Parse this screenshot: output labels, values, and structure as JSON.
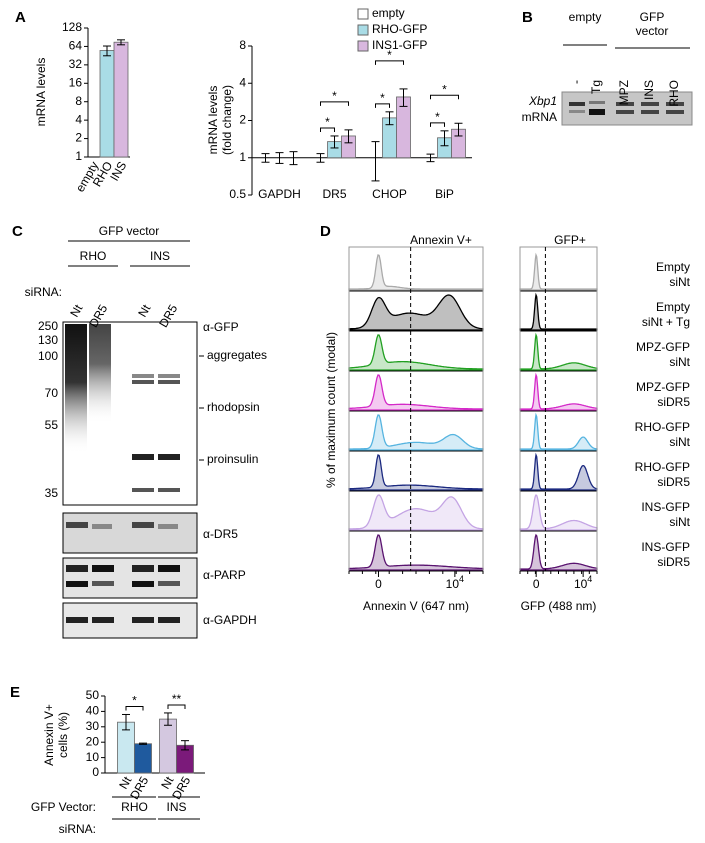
{
  "panel_labels": [
    "A",
    "B",
    "C",
    "D",
    "E"
  ],
  "chart_data": [
    {
      "type": "bar",
      "y_label": "mRNA levels",
      "categories": [
        "empty",
        "RHO",
        "INS"
      ],
      "values": [
        1,
        55,
        75
      ],
      "errors": [
        0,
        10,
        7
      ],
      "colors": [
        "#ffffff",
        "#a9dce6",
        "#d8b7de"
      ],
      "ylim": [
        1,
        128
      ],
      "yticks": [
        1,
        2,
        4,
        8,
        16,
        32,
        64,
        128
      ],
      "log_scale": true
    },
    {
      "type": "bar",
      "y_label_lines": [
        "mRNA levels",
        "(fold change)"
      ],
      "categories": [
        "GAPDH",
        "DR5",
        "CHOP",
        "BiP"
      ],
      "series": [
        {
          "name": "empty",
          "color": "#ffffff",
          "values": [
            1,
            1,
            1,
            1
          ],
          "errors": [
            0.08,
            0.08,
            0.35,
            0.07
          ]
        },
        {
          "name": "RHO-GFP",
          "color": "#a9dce6",
          "values": [
            1,
            1.35,
            2.1,
            1.45
          ],
          "errors": [
            0.1,
            0.15,
            0.25,
            0.2
          ]
        },
        {
          "name": "INS1-GFP",
          "color": "#d8b7de",
          "values": [
            1,
            1.5,
            3.1,
            1.7
          ],
          "errors": [
            0.12,
            0.18,
            0.5,
            0.2
          ]
        }
      ],
      "ylim": [
        0.5,
        8
      ],
      "yticks": [
        0.5,
        1,
        2,
        4,
        8
      ],
      "log_scale": true,
      "significance": [
        {
          "category": "DR5",
          "between": [
            "empty",
            "RHO-GFP"
          ],
          "label": "*"
        },
        {
          "category": "DR5",
          "between": [
            "empty",
            "INS1-GFP"
          ],
          "label": "*"
        },
        {
          "category": "CHOP",
          "between": [
            "empty",
            "RHO-GFP"
          ],
          "label": "*"
        },
        {
          "category": "CHOP",
          "between": [
            "empty",
            "INS1-GFP"
          ],
          "label": "*"
        },
        {
          "category": "BiP",
          "between": [
            "empty",
            "RHO-GFP"
          ],
          "label": "*"
        },
        {
          "category": "BiP",
          "between": [
            "empty",
            "INS1-GFP"
          ],
          "label": "*"
        }
      ]
    },
    {
      "type": "bar",
      "y_label_lines": [
        "Annexin V+",
        "cells (%)"
      ],
      "group_axis_label": "GFP Vector:",
      "category_axis_label": "siRNA:",
      "groups": [
        {
          "name": "RHO",
          "categories": [
            "Nt",
            "DR5"
          ],
          "values": [
            33,
            19
          ],
          "errors": [
            5,
            0.4
          ],
          "colors": [
            "#c9e8f0",
            "#1f5a9e"
          ]
        },
        {
          "name": "INS",
          "categories": [
            "Nt",
            "DR5"
          ],
          "values": [
            35,
            18
          ],
          "errors": [
            4,
            3
          ],
          "colors": [
            "#d4c8e0",
            "#7b1a7a"
          ]
        }
      ],
      "ylim": [
        0,
        50
      ],
      "yticks": [
        0,
        10,
        20,
        30,
        40,
        50
      ],
      "significance": [
        {
          "group": "RHO",
          "label": "*"
        },
        {
          "group": "INS",
          "label": "**"
        }
      ]
    }
  ],
  "gel_b": {
    "empty_label": "empty",
    "vector_label_lines": [
      "GFP",
      "vector"
    ],
    "lanes": [
      "-",
      "Tg",
      "MPZ",
      "INS",
      "RHO"
    ],
    "gene": "Xbp1",
    "gene_sub": "mRNA"
  },
  "blot_c": {
    "header": "GFP vector",
    "groups": [
      "RHO",
      "INS"
    ],
    "sirna_label": "siRNA:",
    "lanes": [
      "Nt",
      "DR5",
      "Nt",
      "DR5"
    ],
    "markers": [
      250,
      130,
      100,
      70,
      55,
      35
    ],
    "band_labels": [
      "aggregates",
      "rhodopsin",
      "proinsulin"
    ],
    "antibodies": [
      "α-GFP",
      "α-DR5",
      "α-PARP",
      "α-GAPDH"
    ]
  },
  "flow_d": {
    "header_labels": [
      "Annexin V+",
      "GFP+"
    ],
    "y_label": "% of maximum count (modal)",
    "x_labels": [
      "Annexin V (647 nm)",
      "GFP (488 nm)"
    ],
    "x_ticks": [
      {
        "label": "0"
      },
      {
        "label": "10",
        "sup": "4"
      }
    ],
    "rows": [
      {
        "lines": [
          "Empty",
          "siNt"
        ],
        "color": "#aaaaaa"
      },
      {
        "lines": [
          "Empty",
          "siNt + Tg"
        ],
        "color": "#000000"
      },
      {
        "lines": [
          "MPZ-GFP",
          "siNt"
        ],
        "color": "#22a022"
      },
      {
        "lines": [
          "MPZ-GFP",
          "siDR5"
        ],
        "color": "#d42ac8"
      },
      {
        "lines": [
          "RHO-GFP",
          "siNt"
        ],
        "color": "#56b4e0"
      },
      {
        "lines": [
          "RHO-GFP",
          "siDR5"
        ],
        "color": "#1c2a80"
      },
      {
        "lines": [
          "INS-GFP",
          "siNt"
        ],
        "color": "#c4a4e4"
      },
      {
        "lines": [
          "INS-GFP",
          "siDR5"
        ],
        "color": "#5a1470"
      }
    ]
  }
}
